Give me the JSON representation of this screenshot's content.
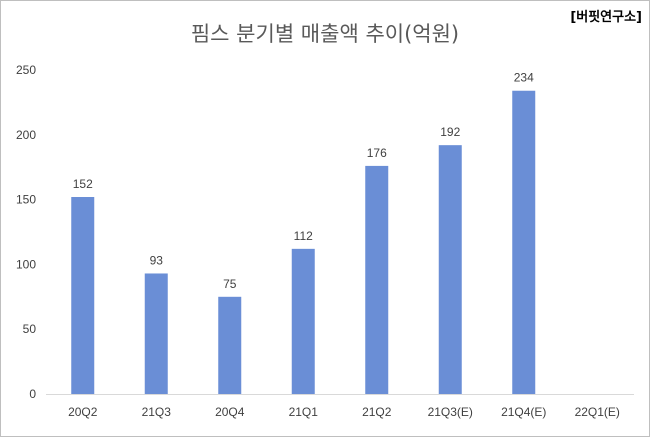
{
  "source_tag": "[버핏연구소]",
  "chart_data": {
    "type": "bar",
    "title": "핌스 분기별 매출액 추이(억원)",
    "categories": [
      "20Q2",
      "21Q3",
      "20Q4",
      "21Q1",
      "21Q2",
      "21Q3(E)",
      "21Q4(E)",
      "22Q1(E)"
    ],
    "values": [
      152,
      93,
      75,
      112,
      176,
      192,
      234,
      null
    ],
    "ylim": [
      0,
      250
    ],
    "yticks": [
      0,
      50,
      100,
      150,
      200,
      250
    ],
    "grid": false,
    "bar_color": "#6a8ed6",
    "legend": "none"
  }
}
